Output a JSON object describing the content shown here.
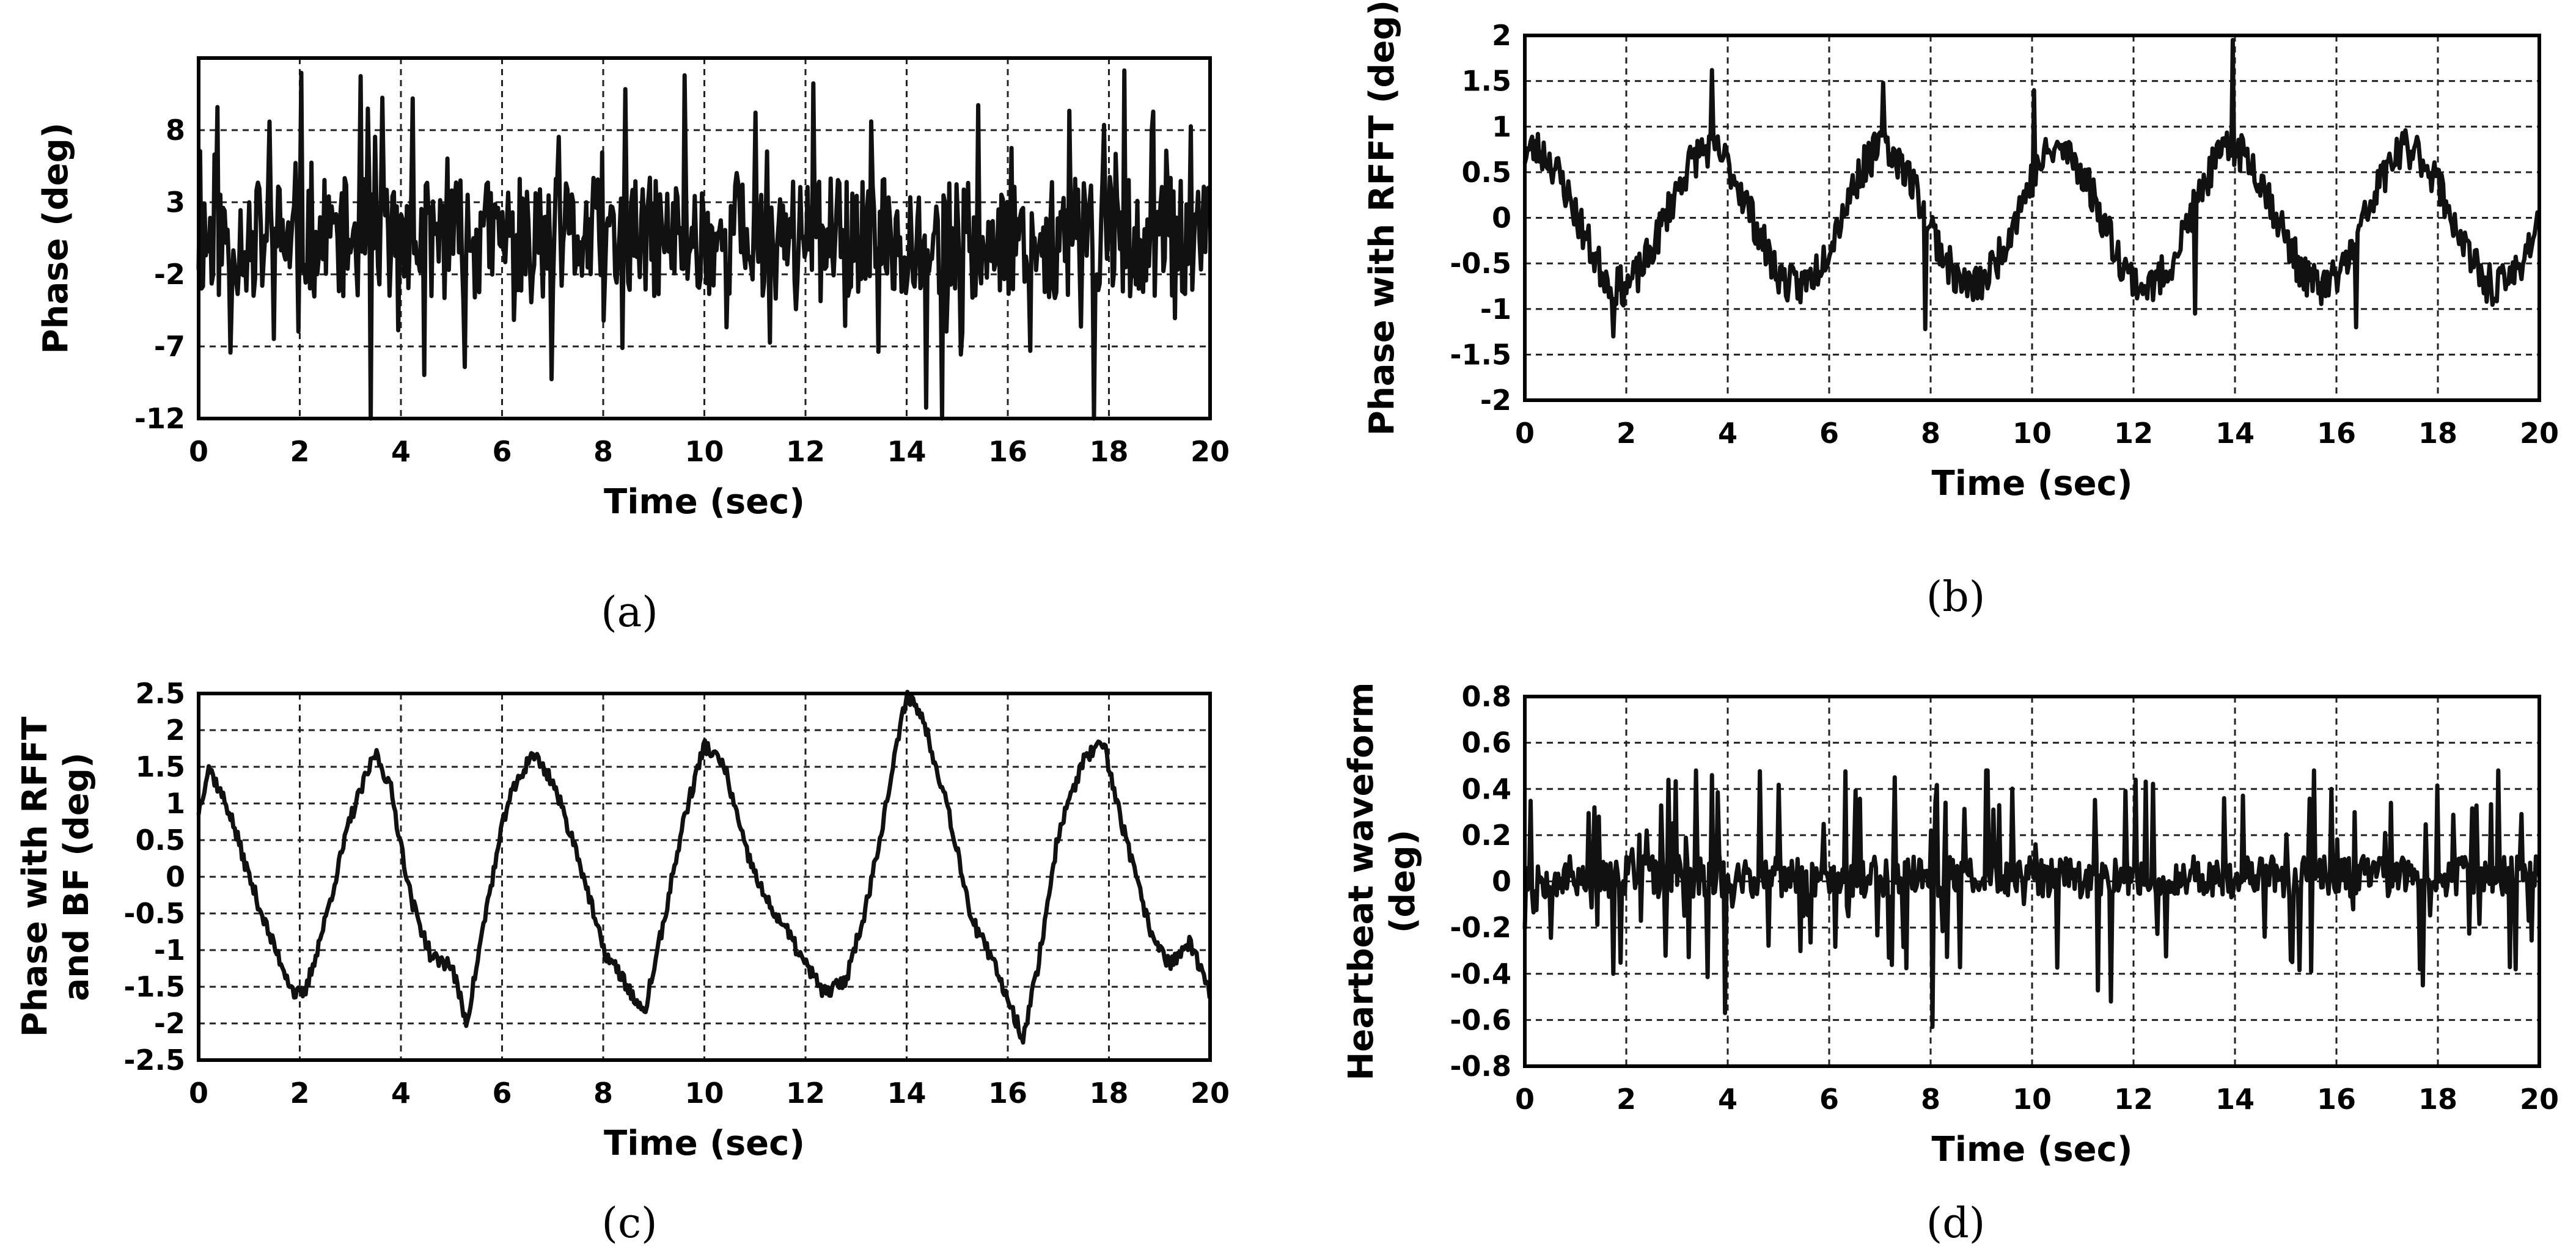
{
  "chart_data": [
    {
      "type": "line",
      "caption": "(a)",
      "xlabel": "Time (sec)",
      "ylabel": [
        "Phase (deg)"
      ],
      "xlim": [
        0,
        20
      ],
      "ylim": [
        -12,
        13
      ],
      "xticks": [
        0,
        2,
        4,
        6,
        8,
        10,
        12,
        14,
        16,
        18,
        20
      ],
      "yticks": [
        -12,
        -7,
        -2,
        3,
        8
      ],
      "grid": true,
      "signal": {
        "kind": "noise",
        "samples": 700,
        "dt": 0.0286,
        "mean": 0.5,
        "noise": 4.2,
        "spike_prob": 0.1,
        "spike_amp": -6,
        "min": -12,
        "max": 12.5,
        "seed": 11,
        "spikes": [
          [
            9.6,
            11.8
          ],
          [
            13.3,
            8.6
          ],
          [
            3.4,
            -12
          ],
          [
            14.7,
            -12
          ],
          [
            17.7,
            -12
          ]
        ]
      },
      "series": [
        {
          "color": "#111111"
        }
      ]
    },
    {
      "type": "line",
      "caption": "(b)",
      "xlabel": "Time (sec)",
      "ylabel": [
        "Phase with RFFT (deg)"
      ],
      "xlim": [
        0,
        20
      ],
      "ylim": [
        -2,
        2
      ],
      "xticks": [
        0,
        2,
        4,
        6,
        8,
        10,
        12,
        14,
        16,
        18,
        20
      ],
      "yticks": [
        -2,
        -1.5,
        -1,
        -0.5,
        0,
        0.5,
        1,
        1.5,
        2
      ],
      "grid": true,
      "signal": {
        "kind": "wave",
        "samples": 700,
        "dt": 0.0286,
        "amp": 0.75,
        "period": 3.45,
        "phase": 1.25,
        "noise": 0.22,
        "seed": 23,
        "min": -2,
        "max": 2,
        "spikes": [
          [
            13.95,
            1.95
          ],
          [
            3.7,
            1.62
          ],
          [
            7.05,
            1.48
          ],
          [
            10.05,
            1.4
          ],
          [
            1.75,
            -1.3
          ],
          [
            7.9,
            -1.22
          ],
          [
            13.2,
            -1.05
          ],
          [
            16.4,
            -1.2
          ]
        ]
      },
      "series": [
        {
          "color": "#111111"
        }
      ]
    },
    {
      "type": "line",
      "caption": "(c)",
      "xlabel": "Time (sec)",
      "ylabel": [
        "Phase with RFFT",
        "and BF (deg)"
      ],
      "xlim": [
        0,
        20
      ],
      "ylim": [
        -2.5,
        2.5
      ],
      "xticks": [
        0,
        2,
        4,
        6,
        8,
        10,
        12,
        14,
        16,
        18,
        20
      ],
      "yticks": [
        -2.5,
        -2,
        -1.5,
        -1,
        -0.5,
        0,
        0.5,
        1,
        1.5,
        2,
        2.5
      ],
      "grid": true,
      "signal": {
        "kind": "anchors",
        "samples": 700,
        "dt": 0.0286,
        "noise": 0.1,
        "seed": 37,
        "x": [
          0,
          0.2,
          0.6,
          1.0,
          1.4,
          1.9,
          2.1,
          2.5,
          3.0,
          3.5,
          3.8,
          4.2,
          4.6,
          5.0,
          5.3,
          5.7,
          6.1,
          6.6,
          7.0,
          7.5,
          8.0,
          8.4,
          8.8,
          9.2,
          9.6,
          10.0,
          10.4,
          10.8,
          11.2,
          11.6,
          12.0,
          12.4,
          12.8,
          13.2,
          13.6,
          14.0,
          14.3,
          14.8,
          15.3,
          15.8,
          16.3,
          16.6,
          17.0,
          17.5,
          17.9,
          18.3,
          18.8,
          19.2,
          19.6,
          20.0
        ],
        "y": [
          0.9,
          1.5,
          0.9,
          0.0,
          -0.8,
          -1.6,
          -1.6,
          -0.6,
          0.8,
          1.7,
          1.2,
          -0.3,
          -1.1,
          -1.2,
          -2.0,
          -0.4,
          1.0,
          1.7,
          1.3,
          0.3,
          -1.0,
          -1.4,
          -1.9,
          -0.6,
          0.8,
          1.8,
          1.5,
          0.4,
          -0.3,
          -0.7,
          -1.2,
          -1.6,
          -1.4,
          -0.4,
          1.0,
          2.5,
          2.2,
          1.0,
          -0.6,
          -1.3,
          -2.2,
          -1.2,
          0.6,
          1.6,
          1.8,
          0.6,
          -0.7,
          -1.2,
          -0.9,
          -1.6
        ]
      },
      "series": [
        {
          "color": "#111111"
        }
      ]
    },
    {
      "type": "line",
      "caption": "(d)",
      "xlabel": "Time (sec)",
      "ylabel": [
        "Heartbeat waveform",
        "(deg)"
      ],
      "xlim": [
        0,
        20
      ],
      "ylim": [
        -0.8,
        0.8
      ],
      "xticks": [
        0,
        2,
        4,
        6,
        8,
        10,
        12,
        14,
        16,
        18,
        20
      ],
      "yticks": [
        -0.8,
        -0.6,
        -0.4,
        -0.2,
        0,
        0.2,
        0.4,
        0.6,
        0.8
      ],
      "grid": true,
      "signal": {
        "kind": "noise",
        "samples": 700,
        "dt": 0.0286,
        "mean": 0.02,
        "noise": 0.09,
        "spike_prob": 0.16,
        "spike_amp": 0.3,
        "min": -0.65,
        "max": 0.48,
        "seed": 53,
        "spikes": [
          [
            3.95,
            -0.57
          ],
          [
            8.05,
            -0.63
          ],
          [
            11.55,
            -0.52
          ],
          [
            12.05,
            0.44
          ],
          [
            1.75,
            -0.4
          ],
          [
            3.7,
            0.46
          ],
          [
            7.3,
            0.45
          ],
          [
            17.7,
            -0.45
          ],
          [
            15.9,
            0.4
          ]
        ]
      },
      "series": [
        {
          "color": "#111111"
        }
      ]
    }
  ]
}
